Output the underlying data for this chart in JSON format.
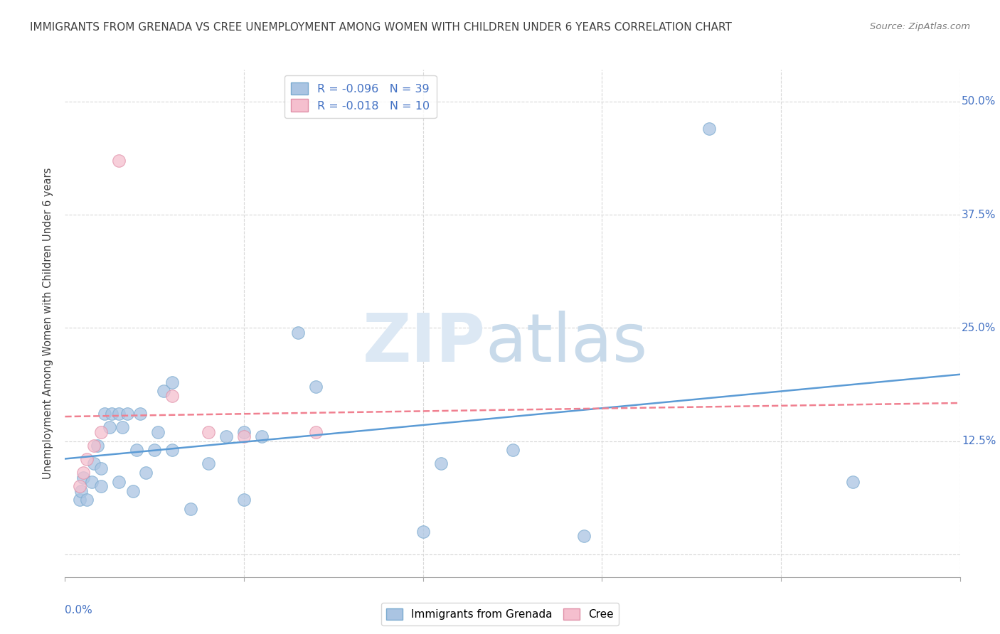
{
  "title": "IMMIGRANTS FROM GRENADA VS CREE UNEMPLOYMENT AMONG WOMEN WITH CHILDREN UNDER 6 YEARS CORRELATION CHART",
  "source": "Source: ZipAtlas.com",
  "ylabel": "Unemployment Among Women with Children Under 6 years",
  "xlim": [
    0.0,
    0.05
  ],
  "ylim": [
    -0.025,
    0.535
  ],
  "yticks": [
    0.0,
    0.125,
    0.25,
    0.375,
    0.5
  ],
  "ytick_labels": [
    "",
    "12.5%",
    "25.0%",
    "37.5%",
    "50.0%"
  ],
  "xtick_positions": [
    0.0,
    0.01,
    0.02,
    0.03,
    0.04,
    0.05
  ],
  "legend_r1": "R = -0.096   N = 39",
  "legend_r2": "R = -0.018   N = 10",
  "blue_scatter_color": "#aac4e2",
  "pink_scatter_color": "#f5bfce",
  "blue_line_color": "#5b9bd5",
  "pink_line_color": "#f08090",
  "blue_edge_color": "#7aaacf",
  "pink_edge_color": "#e090a8",
  "tick_label_color": "#4472c4",
  "grid_color": "#d8d8d8",
  "title_color": "#404040",
  "source_color": "#808080",
  "ylabel_color": "#404040",
  "watermark_zip_color": "#dce8f4",
  "watermark_atlas_color": "#c8daea",
  "grenada_x": [
    0.0008,
    0.0009,
    0.001,
    0.0012,
    0.0015,
    0.0016,
    0.0018,
    0.002,
    0.002,
    0.0022,
    0.0025,
    0.0026,
    0.003,
    0.003,
    0.0032,
    0.0035,
    0.0038,
    0.004,
    0.0042,
    0.0045,
    0.005,
    0.0052,
    0.0055,
    0.006,
    0.006,
    0.007,
    0.008,
    0.009,
    0.01,
    0.01,
    0.011,
    0.013,
    0.014,
    0.02,
    0.021,
    0.025,
    0.029,
    0.036,
    0.044
  ],
  "grenada_y": [
    0.06,
    0.07,
    0.085,
    0.06,
    0.08,
    0.1,
    0.12,
    0.075,
    0.095,
    0.155,
    0.14,
    0.155,
    0.08,
    0.155,
    0.14,
    0.155,
    0.07,
    0.115,
    0.155,
    0.09,
    0.115,
    0.135,
    0.18,
    0.115,
    0.19,
    0.05,
    0.1,
    0.13,
    0.06,
    0.135,
    0.13,
    0.245,
    0.185,
    0.025,
    0.1,
    0.115,
    0.02,
    0.47,
    0.08
  ],
  "cree_x": [
    0.0008,
    0.001,
    0.0012,
    0.0016,
    0.002,
    0.003,
    0.006,
    0.008,
    0.01,
    0.014
  ],
  "cree_y": [
    0.075,
    0.09,
    0.105,
    0.12,
    0.135,
    0.435,
    0.175,
    0.135,
    0.13,
    0.135
  ]
}
